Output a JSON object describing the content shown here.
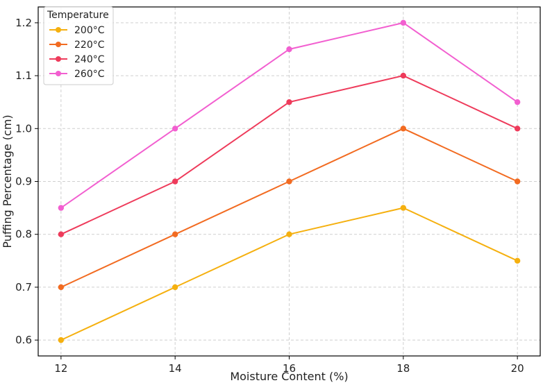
{
  "chart_data": {
    "type": "line",
    "xlabel": "Moisture Content (%)",
    "ylabel": "Puffing Percentage (cm)",
    "x": [
      12,
      14,
      16,
      18,
      20
    ],
    "xlim": [
      11.6,
      20.4
    ],
    "ylim": [
      0.57,
      1.23
    ],
    "xticks": [
      12,
      14,
      16,
      18,
      20
    ],
    "yticks": [
      0.6,
      0.7,
      0.8,
      0.9,
      1.0,
      1.1,
      1.2
    ],
    "grid": true,
    "legend": {
      "title": "Temperature",
      "placement": "top-left"
    },
    "series": [
      {
        "name": "200°C",
        "color": "#F5B00F",
        "values": [
          0.6,
          0.7,
          0.8,
          0.85,
          0.75
        ]
      },
      {
        "name": "220°C",
        "color": "#F26B21",
        "values": [
          0.7,
          0.8,
          0.9,
          1.0,
          0.9
        ]
      },
      {
        "name": "240°C",
        "color": "#EE3B5B",
        "values": [
          0.8,
          0.9,
          1.05,
          1.1,
          1.0
        ]
      },
      {
        "name": "260°C",
        "color": "#F25FD0",
        "values": [
          0.85,
          1.0,
          1.15,
          1.2,
          1.05
        ]
      }
    ]
  }
}
